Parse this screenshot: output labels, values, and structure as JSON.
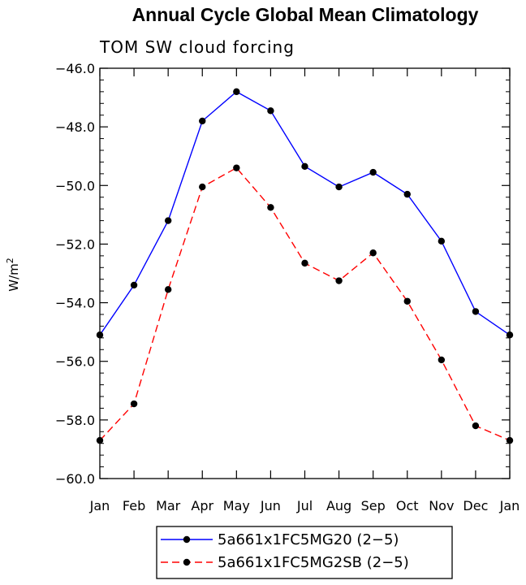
{
  "chart_data": {
    "type": "line",
    "title": "Annual Cycle Global Mean Climatology",
    "subtitle": "TOM SW cloud forcing",
    "ylabel": "W/m",
    "ylabel_superscript": "2",
    "xlabel": "",
    "categories": [
      "Jan",
      "Feb",
      "Mar",
      "Apr",
      "May",
      "Jun",
      "Jul",
      "Aug",
      "Sep",
      "Oct",
      "Nov",
      "Dec",
      "Jan"
    ],
    "ylim": [
      -60,
      -46
    ],
    "yticks": [
      -60,
      -58,
      -56,
      -54,
      -52,
      -50,
      -48,
      -46
    ],
    "ytick_labels": [
      "−60.0",
      "−58.0",
      "−56.0",
      "−54.0",
      "−52.0",
      "−50.0",
      "−48.0",
      "−46.0"
    ],
    "series": [
      {
        "name": "5a661x1FC5MG20 (2−5)",
        "color": "#0000ff",
        "dash": "solid",
        "values": [
          -55.1,
          -53.4,
          -51.2,
          -47.8,
          -46.8,
          -47.45,
          -49.35,
          -50.05,
          -49.55,
          -50.3,
          -51.9,
          -54.3,
          -55.1
        ]
      },
      {
        "name": "5a661x1FC5MG2SB (2−5)",
        "color": "#ff0000",
        "dash": "dashed",
        "values": [
          -58.7,
          -57.45,
          -53.55,
          -50.05,
          -49.4,
          -50.75,
          -52.65,
          -53.25,
          -52.3,
          -53.95,
          -55.95,
          -58.2,
          -58.7
        ]
      }
    ],
    "legend_position": "bottom-center",
    "grid": false
  }
}
